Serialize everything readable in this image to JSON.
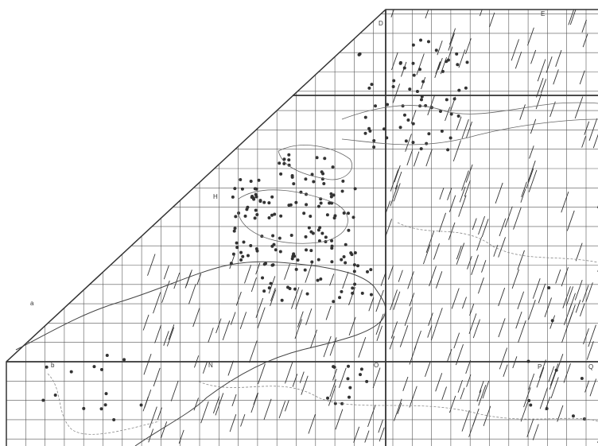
{
  "map": {
    "grid_labels": [
      "D",
      "E",
      "H",
      "N",
      "O",
      "P",
      "Q",
      "a",
      "b"
    ]
  }
}
